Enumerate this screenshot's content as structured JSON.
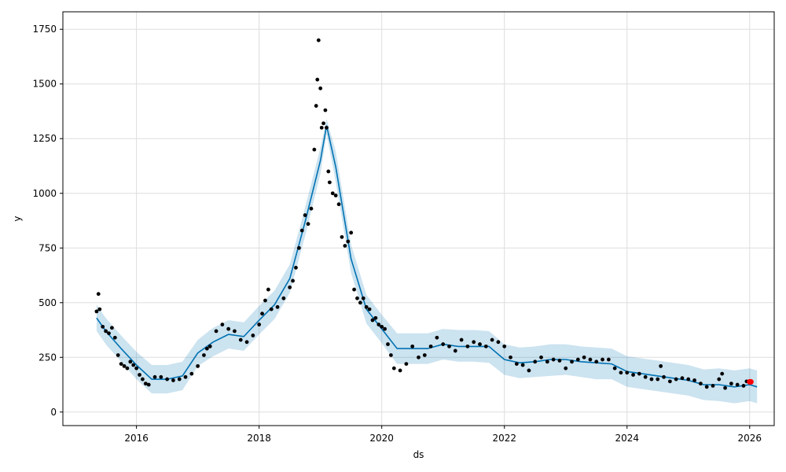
{
  "chart_data": {
    "type": "line",
    "title": "",
    "xlabel": "ds",
    "ylabel": "y",
    "xlim": [
      2014.8,
      2026.4
    ],
    "ylim": [
      -62,
      1830
    ],
    "x_ticks": [
      2016,
      2018,
      2020,
      2022,
      2024,
      2026
    ],
    "x_tick_labels": [
      "2016",
      "2018",
      "2020",
      "2022",
      "2024",
      "2026"
    ],
    "y_ticks": [
      0,
      250,
      500,
      750,
      1000,
      1250,
      1500,
      1750
    ],
    "y_tick_labels": [
      "0",
      "250",
      "500",
      "750",
      "1000",
      "1250",
      "1500",
      "1750"
    ],
    "grid": true,
    "colors": {
      "observed": "#000000",
      "forecast": "#0072B2",
      "interval": "#0072B2",
      "highlight": "#FF0000"
    },
    "series": [
      {
        "kind": "forecast-line",
        "x": [
          2015.35,
          2015.5,
          2015.75,
          2016.0,
          2016.25,
          2016.5,
          2016.75,
          2017.0,
          2017.25,
          2017.5,
          2017.75,
          2018.0,
          2018.25,
          2018.5,
          2018.75,
          2019.0,
          2019.1,
          2019.25,
          2019.5,
          2019.75,
          2020.0,
          2020.25,
          2020.5,
          2020.75,
          2021.0,
          2021.25,
          2021.5,
          2021.75,
          2022.0,
          2022.25,
          2022.5,
          2022.75,
          2023.0,
          2023.25,
          2023.5,
          2023.75,
          2024.0,
          2024.25,
          2024.5,
          2024.75,
          2025.0,
          2025.25,
          2025.5,
          2025.75,
          2026.0,
          2026.12
        ],
        "y": [
          430,
          370,
          290,
          215,
          150,
          150,
          165,
          270,
          320,
          355,
          345,
          420,
          490,
          610,
          870,
          1150,
          1310,
          1120,
          700,
          470,
          380,
          290,
          290,
          290,
          310,
          300,
          300,
          300,
          240,
          225,
          230,
          240,
          240,
          230,
          225,
          220,
          185,
          175,
          165,
          155,
          145,
          125,
          125,
          115,
          125,
          115
        ]
      },
      {
        "kind": "uncertainty-upper",
        "x": [
          2015.35,
          2015.5,
          2015.75,
          2016.0,
          2016.25,
          2016.5,
          2016.75,
          2017.0,
          2017.25,
          2017.5,
          2017.75,
          2018.0,
          2018.25,
          2018.5,
          2018.75,
          2019.0,
          2019.1,
          2019.25,
          2019.5,
          2019.75,
          2020.0,
          2020.25,
          2020.5,
          2020.75,
          2021.0,
          2021.25,
          2021.5,
          2021.75,
          2022.0,
          2022.25,
          2022.5,
          2022.75,
          2023.0,
          2023.25,
          2023.5,
          2023.75,
          2024.0,
          2024.25,
          2024.5,
          2024.75,
          2025.0,
          2025.25,
          2025.5,
          2025.75,
          2026.0,
          2026.12
        ],
        "y": [
          490,
          430,
          350,
          275,
          215,
          215,
          230,
          330,
          385,
          420,
          410,
          485,
          555,
          675,
          935,
          1210,
          1340,
          1190,
          765,
          535,
          445,
          360,
          360,
          360,
          380,
          375,
          375,
          370,
          310,
          295,
          300,
          310,
          310,
          300,
          295,
          290,
          255,
          245,
          235,
          225,
          215,
          195,
          200,
          190,
          200,
          190
        ]
      },
      {
        "kind": "uncertainty-lower",
        "x": [
          2015.35,
          2015.5,
          2015.75,
          2016.0,
          2016.25,
          2016.5,
          2016.75,
          2017.0,
          2017.25,
          2017.5,
          2017.75,
          2018.0,
          2018.25,
          2018.5,
          2018.75,
          2019.0,
          2019.1,
          2019.25,
          2019.5,
          2019.75,
          2020.0,
          2020.25,
          2020.5,
          2020.75,
          2021.0,
          2021.25,
          2021.5,
          2021.75,
          2022.0,
          2022.25,
          2022.5,
          2022.75,
          2023.0,
          2023.25,
          2023.5,
          2023.75,
          2024.0,
          2024.25,
          2024.5,
          2024.75,
          2025.0,
          2025.25,
          2025.5,
          2025.75,
          2026.0,
          2026.12
        ],
        "y": [
          370,
          310,
          230,
          150,
          85,
          85,
          100,
          210,
          255,
          290,
          280,
          355,
          425,
          545,
          805,
          1090,
          1270,
          1050,
          635,
          405,
          315,
          220,
          220,
          220,
          240,
          230,
          230,
          225,
          170,
          155,
          160,
          165,
          170,
          160,
          150,
          150,
          115,
          105,
          95,
          85,
          75,
          55,
          50,
          40,
          50,
          40
        ]
      },
      {
        "kind": "observed-points",
        "x": [
          2015.35,
          2015.38,
          2015.4,
          2015.45,
          2015.5,
          2015.55,
          2015.6,
          2015.65,
          2015.7,
          2015.75,
          2015.8,
          2015.85,
          2015.9,
          2015.95,
          2016.0,
          2016.05,
          2016.1,
          2016.15,
          2016.2,
          2016.3,
          2016.4,
          2016.5,
          2016.6,
          2016.7,
          2016.8,
          2016.9,
          2017.0,
          2017.1,
          2017.15,
          2017.2,
          2017.3,
          2017.4,
          2017.5,
          2017.6,
          2017.7,
          2017.8,
          2017.9,
          2018.0,
          2018.05,
          2018.1,
          2018.15,
          2018.2,
          2018.3,
          2018.4,
          2018.5,
          2018.55,
          2018.6,
          2018.65,
          2018.7,
          2018.75,
          2018.8,
          2018.85,
          2018.9,
          2018.93,
          2018.95,
          2018.97,
          2019.0,
          2019.02,
          2019.05,
          2019.08,
          2019.1,
          2019.13,
          2019.15,
          2019.2,
          2019.25,
          2019.3,
          2019.35,
          2019.4,
          2019.45,
          2019.5,
          2019.55,
          2019.6,
          2019.65,
          2019.7,
          2019.75,
          2019.8,
          2019.85,
          2019.9,
          2019.95,
          2020.0,
          2020.05,
          2020.1,
          2020.15,
          2020.2,
          2020.3,
          2020.4,
          2020.5,
          2020.6,
          2020.7,
          2020.8,
          2020.9,
          2021.0,
          2021.1,
          2021.2,
          2021.3,
          2021.4,
          2021.5,
          2021.6,
          2021.7,
          2021.8,
          2021.9,
          2022.0,
          2022.1,
          2022.2,
          2022.3,
          2022.4,
          2022.5,
          2022.6,
          2022.7,
          2022.8,
          2022.9,
          2023.0,
          2023.1,
          2023.2,
          2023.3,
          2023.4,
          2023.5,
          2023.6,
          2023.7,
          2023.8,
          2023.9,
          2024.0,
          2024.1,
          2024.2,
          2024.3,
          2024.4,
          2024.5,
          2024.55,
          2024.6,
          2024.7,
          2024.8,
          2024.9,
          2025.0,
          2025.1,
          2025.2,
          2025.3,
          2025.4,
          2025.5,
          2025.55,
          2025.6,
          2025.7,
          2025.8,
          2025.9,
          2025.95
        ],
        "y": [
          460,
          540,
          470,
          390,
          370,
          360,
          385,
          340,
          260,
          220,
          210,
          200,
          230,
          215,
          200,
          170,
          150,
          130,
          125,
          160,
          160,
          150,
          145,
          150,
          160,
          175,
          210,
          260,
          290,
          300,
          370,
          400,
          380,
          370,
          330,
          320,
          350,
          400,
          450,
          510,
          560,
          470,
          480,
          520,
          570,
          600,
          660,
          750,
          830,
          900,
          860,
          930,
          1200,
          1400,
          1520,
          1700,
          1480,
          1300,
          1320,
          1380,
          1300,
          1100,
          1050,
          1000,
          990,
          950,
          800,
          760,
          780,
          820,
          560,
          520,
          500,
          520,
          480,
          470,
          420,
          430,
          400,
          390,
          380,
          310,
          260,
          200,
          190,
          220,
          300,
          250,
          260,
          300,
          340,
          310,
          300,
          280,
          330,
          300,
          320,
          310,
          300,
          330,
          320,
          300,
          250,
          220,
          215,
          190,
          230,
          250,
          230,
          240,
          235,
          200,
          230,
          240,
          250,
          240,
          230,
          240,
          240,
          200,
          180,
          180,
          170,
          175,
          160,
          150,
          150,
          210,
          160,
          140,
          150,
          155,
          150,
          145,
          130,
          115,
          120,
          150,
          175,
          110,
          130,
          125,
          120,
          140
        ]
      },
      {
        "kind": "highlight-points",
        "x": [
          2026.0,
          2026.02
        ],
        "y": [
          138,
          138
        ]
      }
    ]
  }
}
